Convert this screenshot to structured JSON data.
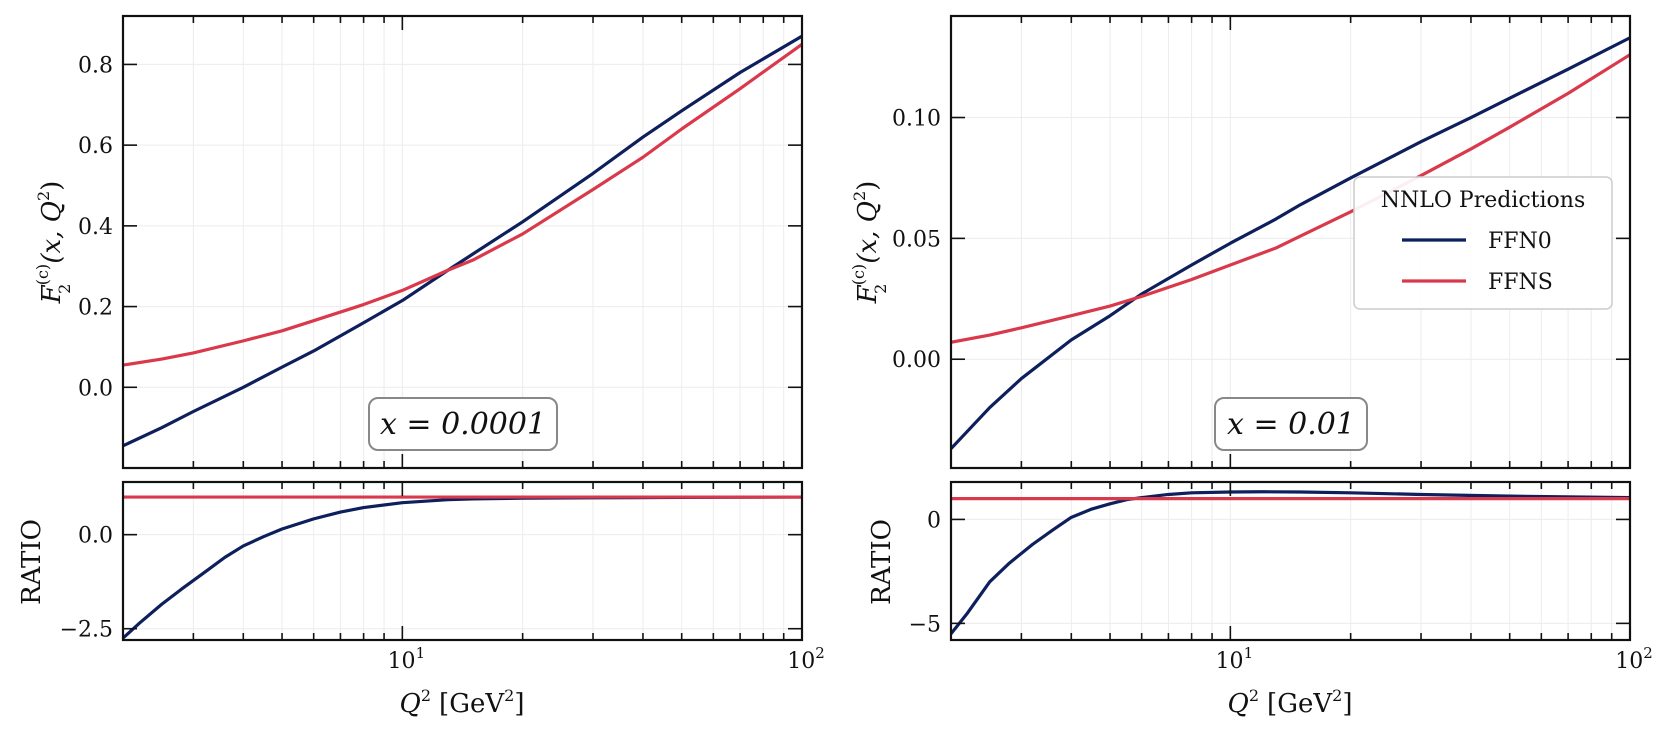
{
  "chart_data": [
    {
      "type": "line",
      "panel": "left",
      "xscale": "log",
      "xlim": [
        2,
        100
      ],
      "xticks": [
        10,
        100
      ],
      "xtick_labels": [
        {
          "base": "10",
          "exp": "1"
        },
        {
          "base": "10",
          "exp": "2"
        }
      ],
      "xlabel": {
        "var": "Q",
        "exp": "2",
        "unit_pre": "[GeV",
        "unit_exp": "2",
        "unit_post": "]"
      },
      "top": {
        "ylabel": {
          "main": "F",
          "sup": "(c)",
          "sub": "2",
          "args": "(x, Q",
          "args_exp": "2",
          "args_close": ")"
        },
        "ylim": [
          -0.2,
          0.92
        ],
        "yticks": [
          0.0,
          0.2,
          0.4,
          0.6,
          0.8
        ],
        "ytick_labels": [
          "0.0",
          "0.2",
          "0.4",
          "0.6",
          "0.8"
        ],
        "annotation": "x = 0.0001",
        "series": [
          {
            "name": "FFN0",
            "color": "#0d1f5c",
            "x": [
              2,
              2.5,
              3,
              4,
              5,
              6,
              8,
              10,
              13,
              15,
              20,
              30,
              40,
              50,
              70,
              100
            ],
            "y": [
              -0.145,
              -0.1,
              -0.06,
              0.0,
              0.05,
              0.09,
              0.16,
              0.215,
              0.29,
              0.33,
              0.41,
              0.53,
              0.62,
              0.685,
              0.78,
              0.87
            ]
          },
          {
            "name": "FFNS",
            "color": "#d9394a",
            "x": [
              2,
              2.5,
              3,
              4,
              5,
              6,
              8,
              10,
              13,
              15,
              20,
              30,
              40,
              50,
              70,
              100
            ],
            "y": [
              0.055,
              0.07,
              0.085,
              0.115,
              0.14,
              0.165,
              0.205,
              0.24,
              0.29,
              0.315,
              0.38,
              0.49,
              0.57,
              0.64,
              0.74,
              0.85
            ]
          }
        ]
      },
      "bottom": {
        "ylabel": "RATIO",
        "ylim": [
          -2.8,
          1.4
        ],
        "yticks": [
          -2.5,
          0.0
        ],
        "ytick_labels": [
          "−2.5",
          "0.0"
        ],
        "series": [
          {
            "name": "FFN0",
            "color": "#0d1f5c",
            "x": [
              2,
              2.2,
              2.5,
              2.8,
              3.2,
              3.6,
              4,
              4.5,
              5,
              6,
              7,
              8,
              10,
              13,
              15,
              20,
              30,
              50,
              100
            ],
            "y": [
              -2.75,
              -2.35,
              -1.85,
              -1.45,
              -1.0,
              -0.6,
              -0.3,
              -0.05,
              0.15,
              0.42,
              0.6,
              0.72,
              0.85,
              0.93,
              0.95,
              0.97,
              0.98,
              0.99,
              1.0
            ]
          },
          {
            "name": "FFNS",
            "color": "#d9394a",
            "x": [
              2,
              100
            ],
            "y": [
              1.0,
              1.0
            ]
          }
        ]
      }
    },
    {
      "type": "line",
      "panel": "right",
      "xscale": "log",
      "xlim": [
        2,
        100
      ],
      "xticks": [
        10,
        100
      ],
      "xtick_labels": [
        {
          "base": "10",
          "exp": "1"
        },
        {
          "base": "10",
          "exp": "2"
        }
      ],
      "xlabel": {
        "var": "Q",
        "exp": "2",
        "unit_pre": "[GeV",
        "unit_exp": "2",
        "unit_post": "]"
      },
      "top": {
        "ylabel": {
          "main": "F",
          "sup": "(c)",
          "sub": "2",
          "args": "(x, Q",
          "args_exp": "2",
          "args_close": ")"
        },
        "ylim": [
          -0.045,
          0.142
        ],
        "yticks": [
          0.0,
          0.05,
          0.1
        ],
        "ytick_labels": [
          "0.00",
          "0.05",
          "0.10"
        ],
        "annotation": "x = 0.01",
        "legend": {
          "title": "NNLO Predictions",
          "position": "right",
          "entries": [
            "FFN0",
            "FFNS"
          ]
        },
        "series": [
          {
            "name": "FFN0",
            "color": "#0d1f5c",
            "x": [
              2,
              2.5,
              3,
              4,
              5,
              6,
              8,
              10,
              13,
              15,
              20,
              30,
              40,
              50,
              70,
              100
            ],
            "y": [
              -0.037,
              -0.02,
              -0.008,
              0.008,
              0.018,
              0.027,
              0.039,
              0.048,
              0.058,
              0.064,
              0.075,
              0.09,
              0.1,
              0.108,
              0.12,
              0.133
            ]
          },
          {
            "name": "FFNS",
            "color": "#d9394a",
            "x": [
              2,
              2.5,
              3,
              4,
              5,
              6,
              8,
              10,
              13,
              15,
              20,
              30,
              40,
              50,
              70,
              100
            ],
            "y": [
              0.007,
              0.01,
              0.013,
              0.018,
              0.022,
              0.026,
              0.033,
              0.039,
              0.046,
              0.051,
              0.061,
              0.076,
              0.087,
              0.096,
              0.11,
              0.126
            ]
          }
        ]
      },
      "bottom": {
        "ylabel": "RATIO",
        "ylim": [
          -5.8,
          1.8
        ],
        "yticks": [
          -5,
          0
        ],
        "ytick_labels": [
          "−5",
          "0"
        ],
        "series": [
          {
            "name": "FFN0",
            "color": "#0d1f5c",
            "x": [
              2,
              2.2,
              2.5,
              2.8,
              3.2,
              3.6,
              4,
              4.5,
              5,
              5.5,
              6,
              7,
              8,
              10,
              12,
              15,
              20,
              30,
              50,
              100
            ],
            "y": [
              -5.5,
              -4.5,
              -3.0,
              -2.1,
              -1.2,
              -0.5,
              0.1,
              0.5,
              0.75,
              0.95,
              1.05,
              1.2,
              1.28,
              1.32,
              1.33,
              1.32,
              1.28,
              1.2,
              1.12,
              1.05
            ]
          },
          {
            "name": "FFNS",
            "color": "#d9394a",
            "x": [
              2,
              100
            ],
            "y": [
              1.0,
              1.0
            ]
          }
        ]
      }
    }
  ]
}
